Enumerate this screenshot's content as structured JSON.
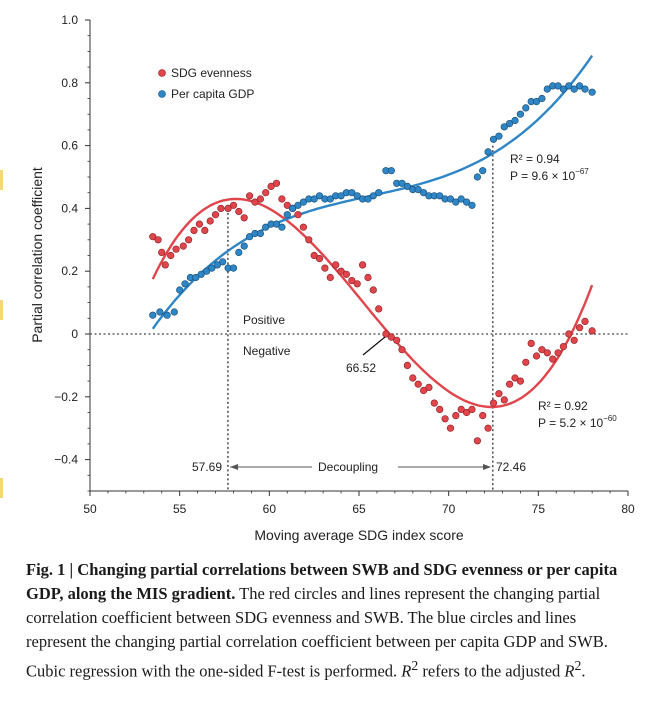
{
  "chart_data": {
    "type": "scatter",
    "xlabel": "Moving average SDG index score",
    "ylabel": "Partial correlation coefficient",
    "xlim": [
      50,
      80
    ],
    "ylim": [
      -0.5,
      1.0
    ],
    "x_ticks": [
      "50",
      "55",
      "60",
      "65",
      "70",
      "75",
      "80"
    ],
    "y_ticks": [
      "1.0",
      "0.8",
      "0.6",
      "0.4",
      "0.2",
      "0",
      "−0.2",
      "−0.4"
    ],
    "legend": {
      "placement": "top-left",
      "entries": [
        "SDG evenness",
        "Per capita GDP"
      ]
    },
    "grid": false,
    "series": [
      {
        "name": "SDG evenness",
        "color": "#e0454b",
        "fit": "cubic",
        "r2_text": "R² = 0.92",
        "p_text": "P = 5.2 × 10",
        "p_exp": "−60",
        "points": [
          [
            53.5,
            0.31
          ],
          [
            53.8,
            0.3
          ],
          [
            54.0,
            0.26
          ],
          [
            54.2,
            0.22
          ],
          [
            54.5,
            0.25
          ],
          [
            54.8,
            0.27
          ],
          [
            55.2,
            0.28
          ],
          [
            55.5,
            0.3
          ],
          [
            55.8,
            0.33
          ],
          [
            56.1,
            0.35
          ],
          [
            56.4,
            0.33
          ],
          [
            56.7,
            0.36
          ],
          [
            57.0,
            0.38
          ],
          [
            57.3,
            0.4
          ],
          [
            57.7,
            0.4
          ],
          [
            58.0,
            0.41
          ],
          [
            58.3,
            0.39
          ],
          [
            58.6,
            0.37
          ],
          [
            58.9,
            0.44
          ],
          [
            59.2,
            0.42
          ],
          [
            59.5,
            0.43
          ],
          [
            59.8,
            0.45
          ],
          [
            60.1,
            0.47
          ],
          [
            60.4,
            0.48
          ],
          [
            60.7,
            0.43
          ],
          [
            61.0,
            0.41
          ],
          [
            61.3,
            0.4
          ],
          [
            61.6,
            0.38
          ],
          [
            61.9,
            0.34
          ],
          [
            62.2,
            0.3
          ],
          [
            62.5,
            0.25
          ],
          [
            62.8,
            0.24
          ],
          [
            63.1,
            0.21
          ],
          [
            63.4,
            0.18
          ],
          [
            63.7,
            0.22
          ],
          [
            64.0,
            0.2
          ],
          [
            64.3,
            0.19
          ],
          [
            64.6,
            0.17
          ],
          [
            64.9,
            0.16
          ],
          [
            65.2,
            0.22
          ],
          [
            65.5,
            0.18
          ],
          [
            65.8,
            0.14
          ],
          [
            66.1,
            0.08
          ],
          [
            66.5,
            0.0
          ],
          [
            66.8,
            -0.01
          ],
          [
            67.1,
            -0.02
          ],
          [
            67.4,
            -0.05
          ],
          [
            67.7,
            -0.1
          ],
          [
            68.0,
            -0.14
          ],
          [
            68.3,
            -0.16
          ],
          [
            68.6,
            -0.18
          ],
          [
            68.9,
            -0.17
          ],
          [
            69.2,
            -0.22
          ],
          [
            69.5,
            -0.24
          ],
          [
            69.8,
            -0.27
          ],
          [
            70.1,
            -0.3
          ],
          [
            70.4,
            -0.26
          ],
          [
            70.7,
            -0.24
          ],
          [
            71.0,
            -0.25
          ],
          [
            71.3,
            -0.24
          ],
          [
            71.6,
            -0.34
          ],
          [
            71.9,
            -0.26
          ],
          [
            72.2,
            -0.3
          ],
          [
            72.5,
            -0.22
          ],
          [
            72.8,
            -0.19
          ],
          [
            73.1,
            -0.21
          ],
          [
            73.4,
            -0.16
          ],
          [
            73.7,
            -0.14
          ],
          [
            74.0,
            -0.15
          ],
          [
            74.3,
            -0.09
          ],
          [
            74.6,
            -0.03
          ],
          [
            74.9,
            -0.07
          ],
          [
            75.2,
            -0.05
          ],
          [
            75.5,
            -0.06
          ],
          [
            75.8,
            -0.08
          ],
          [
            76.1,
            -0.06
          ],
          [
            76.4,
            -0.04
          ],
          [
            76.7,
            0.0
          ],
          [
            77.0,
            -0.02
          ],
          [
            77.3,
            0.02
          ],
          [
            77.6,
            0.04
          ],
          [
            78.0,
            0.01
          ]
        ]
      },
      {
        "name": "Per capita GDP",
        "color": "#2f86c6",
        "fit": "cubic",
        "r2_text": "R² = 0.94",
        "p_text": "P = 9.6 × 10",
        "p_exp": "−67",
        "points": [
          [
            53.5,
            0.06
          ],
          [
            53.9,
            0.07
          ],
          [
            54.3,
            0.06
          ],
          [
            54.7,
            0.07
          ],
          [
            55.0,
            0.14
          ],
          [
            55.3,
            0.16
          ],
          [
            55.6,
            0.18
          ],
          [
            55.9,
            0.18
          ],
          [
            56.2,
            0.19
          ],
          [
            56.5,
            0.2
          ],
          [
            56.8,
            0.21
          ],
          [
            57.1,
            0.22
          ],
          [
            57.4,
            0.23
          ],
          [
            57.7,
            0.21
          ],
          [
            58.0,
            0.21
          ],
          [
            58.3,
            0.26
          ],
          [
            58.6,
            0.28
          ],
          [
            58.9,
            0.31
          ],
          [
            59.2,
            0.32
          ],
          [
            59.5,
            0.32
          ],
          [
            59.8,
            0.34
          ],
          [
            60.1,
            0.35
          ],
          [
            60.4,
            0.35
          ],
          [
            60.7,
            0.34
          ],
          [
            61.0,
            0.38
          ],
          [
            61.3,
            0.4
          ],
          [
            61.6,
            0.41
          ],
          [
            61.9,
            0.42
          ],
          [
            62.2,
            0.43
          ],
          [
            62.5,
            0.43
          ],
          [
            62.8,
            0.44
          ],
          [
            63.1,
            0.43
          ],
          [
            63.4,
            0.43
          ],
          [
            63.7,
            0.44
          ],
          [
            64.0,
            0.44
          ],
          [
            64.3,
            0.45
          ],
          [
            64.6,
            0.45
          ],
          [
            64.9,
            0.44
          ],
          [
            65.2,
            0.43
          ],
          [
            65.5,
            0.43
          ],
          [
            65.8,
            0.44
          ],
          [
            66.1,
            0.45
          ],
          [
            66.5,
            0.52
          ],
          [
            66.8,
            0.52
          ],
          [
            67.1,
            0.48
          ],
          [
            67.4,
            0.48
          ],
          [
            67.7,
            0.47
          ],
          [
            68.0,
            0.46
          ],
          [
            68.3,
            0.46
          ],
          [
            68.6,
            0.45
          ],
          [
            68.9,
            0.44
          ],
          [
            69.2,
            0.44
          ],
          [
            69.5,
            0.44
          ],
          [
            69.8,
            0.43
          ],
          [
            70.1,
            0.43
          ],
          [
            70.4,
            0.42
          ],
          [
            70.7,
            0.43
          ],
          [
            71.0,
            0.42
          ],
          [
            71.3,
            0.41
          ],
          [
            71.6,
            0.5
          ],
          [
            71.9,
            0.52
          ],
          [
            72.2,
            0.58
          ],
          [
            72.5,
            0.62
          ],
          [
            72.8,
            0.63
          ],
          [
            73.1,
            0.66
          ],
          [
            73.4,
            0.67
          ],
          [
            73.7,
            0.68
          ],
          [
            74.0,
            0.7
          ],
          [
            74.3,
            0.72
          ],
          [
            74.6,
            0.74
          ],
          [
            74.9,
            0.74
          ],
          [
            75.2,
            0.75
          ],
          [
            75.5,
            0.78
          ],
          [
            75.8,
            0.79
          ],
          [
            76.1,
            0.79
          ],
          [
            76.4,
            0.78
          ],
          [
            76.7,
            0.79
          ],
          [
            77.0,
            0.78
          ],
          [
            77.3,
            0.79
          ],
          [
            77.6,
            0.78
          ],
          [
            78.0,
            0.77
          ]
        ]
      }
    ],
    "annotations": {
      "positive": "Positive",
      "negative": "Negative",
      "crossing": "66.52",
      "left_x": "57.69",
      "decoupling": "Decoupling",
      "right_x": "72.46"
    }
  },
  "caption": {
    "lead": "Fig. 1 | Changing partial correlations between SWB and SDG evenness or per capita GDP, along the MIS gradient.",
    "body": "The red circles and lines represent the changing partial correlation coefficient between SDG evenness and SWB. The blue circles and lines represent the changing partial correlation coefficient between per capita GDP and SWB. Cubic regression with the one-sided F-test is performed.",
    "r2_note_a": "R",
    "r2_note_b": "2",
    "r2_note_c": " refers to the adjusted ",
    "r2_note_d": "R",
    "r2_note_e": "2",
    "r2_note_f": "."
  }
}
